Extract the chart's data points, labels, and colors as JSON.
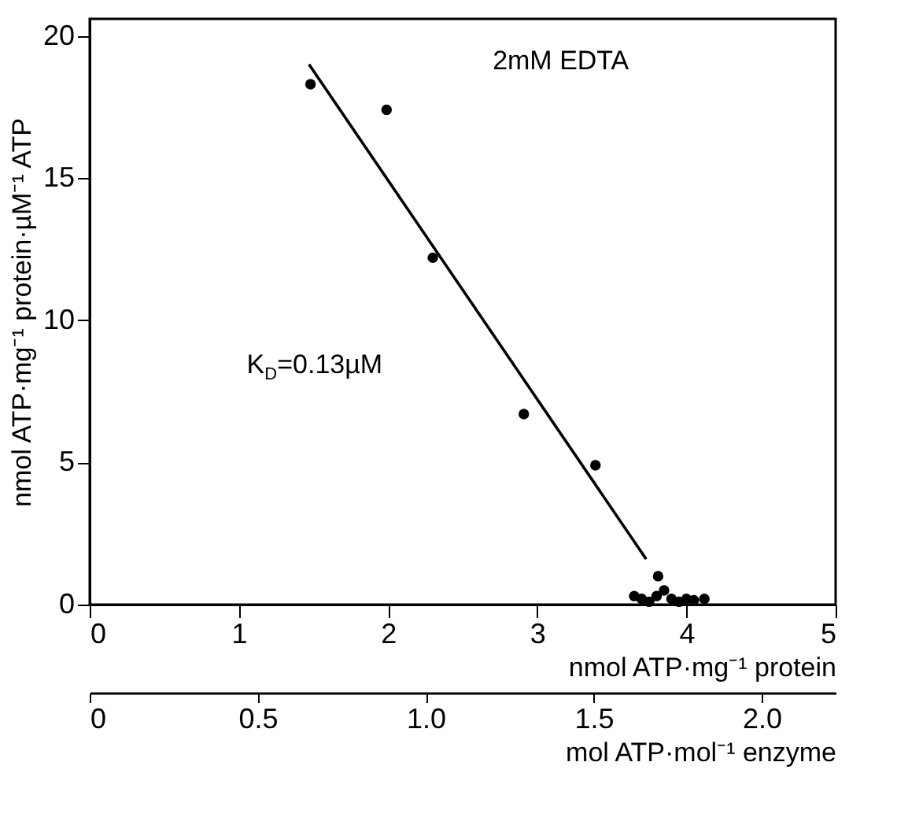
{
  "chart_data": {
    "type": "scatter",
    "xlabel": "nmol ATP·mg⁻¹ protein",
    "ylabel": "nmol ATP·mg⁻¹ protein·µM⁻¹ ATP",
    "x2label": "mol ATP·mol⁻¹ enzyme",
    "annotations": [
      "2mM EDTA",
      "K$_{D}$=0.13µM"
    ],
    "xlim": [
      0,
      5
    ],
    "xticks": [
      0,
      1,
      2,
      3,
      4,
      5
    ],
    "ylim": [
      0,
      20.6
    ],
    "yticks": [
      0,
      5,
      10,
      15,
      20
    ],
    "x2lim": [
      0,
      2.22
    ],
    "x2ticks": [
      0,
      0.5,
      {
        "value": 1,
        "label": "1.0"
      },
      1.5,
      {
        "value": 2,
        "label": "2.0"
      }
    ],
    "grid": false,
    "legend": false,
    "series": [
      {
        "marker": "circle",
        "color": "#000000",
        "x": [
          1.48,
          1.99,
          2.3,
          2.91,
          3.39,
          3.81,
          3.65,
          3.7,
          3.75,
          3.8,
          3.85,
          3.9,
          3.95,
          4.0,
          4.05,
          4.12
        ],
        "values": [
          18.3,
          17.4,
          12.2,
          6.7,
          4.9,
          1.0,
          0.3,
          0.2,
          0.1,
          0.3,
          0.5,
          0.2,
          0.1,
          0.2,
          0.15,
          0.2
        ]
      },
      {
        "type": "line",
        "color": "#000000",
        "line_style": "solid",
        "x": [
          1.47,
          3.73
        ],
        "values": [
          19.0,
          1.6
        ]
      }
    ]
  }
}
